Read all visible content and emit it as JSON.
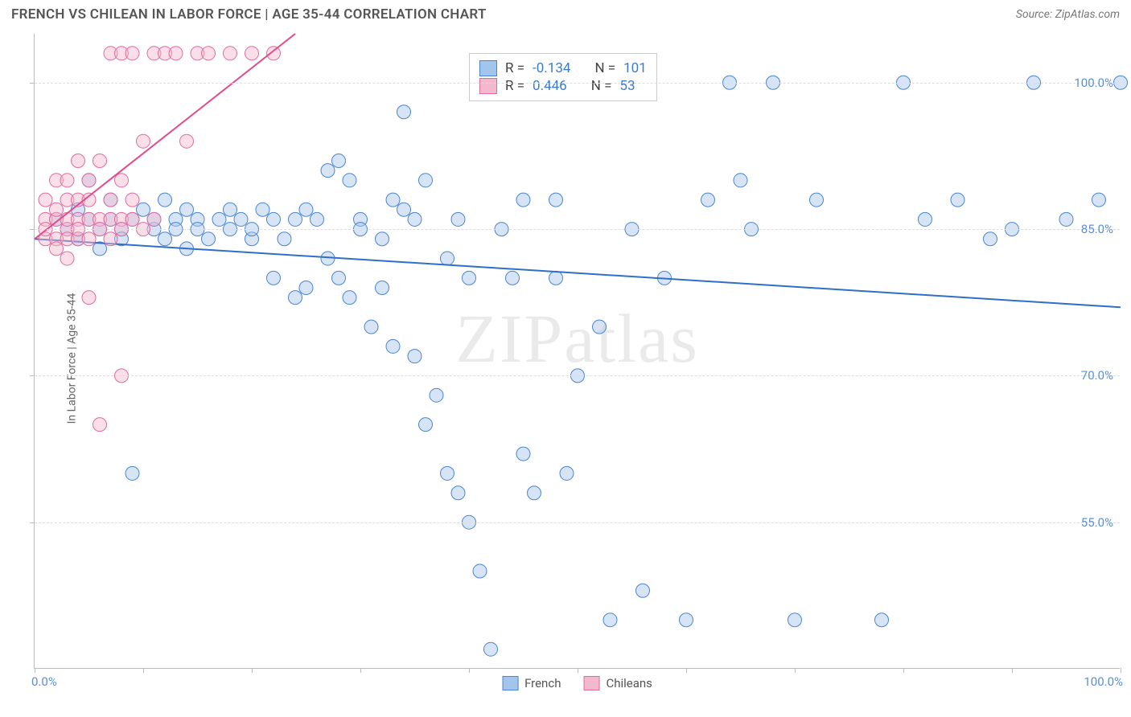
{
  "header": {
    "title": "FRENCH VS CHILEAN IN LABOR FORCE | AGE 35-44 CORRELATION CHART",
    "source": "Source: ZipAtlas.com"
  },
  "chart": {
    "type": "scatter",
    "y_axis_label": "In Labor Force | Age 35-44",
    "watermark": "ZIPatlas",
    "background_color": "#ffffff",
    "grid_color": "#dddddd",
    "axis_color": "#bbbbbb",
    "xlim": [
      0,
      100
    ],
    "ylim": [
      40,
      105
    ],
    "x_ticks": [
      0,
      10,
      20,
      30,
      40,
      50,
      60,
      70,
      80,
      90,
      100
    ],
    "x_tick_labels": {
      "0": "0.0%",
      "100": "100.0%"
    },
    "y_gridlines": [
      55,
      70,
      85,
      100
    ],
    "y_tick_labels": {
      "55": "55.0%",
      "70": "70.0%",
      "85": "85.0%",
      "100": "100.0%"
    },
    "marker_radius": 8.5,
    "marker_opacity": 0.45,
    "trend_line_width": 2,
    "series": [
      {
        "name": "French",
        "fill_color": "#a3c4ec",
        "stroke_color": "#4a86d0",
        "trend_color": "#2f6fc7",
        "R": "-0.134",
        "N": "101",
        "trend_line": {
          "x1": 0,
          "y1": 84,
          "x2": 100,
          "y2": 77
        },
        "points": [
          [
            2,
            86
          ],
          [
            3,
            85
          ],
          [
            4,
            87
          ],
          [
            4,
            84
          ],
          [
            5,
            86
          ],
          [
            5,
            90
          ],
          [
            6,
            85
          ],
          [
            6,
            83
          ],
          [
            7,
            86
          ],
          [
            7,
            88
          ],
          [
            8,
            85
          ],
          [
            8,
            84
          ],
          [
            9,
            86
          ],
          [
            9,
            60
          ],
          [
            10,
            87
          ],
          [
            11,
            85
          ],
          [
            11,
            86
          ],
          [
            12,
            84
          ],
          [
            12,
            88
          ],
          [
            13,
            86
          ],
          [
            13,
            85
          ],
          [
            14,
            87
          ],
          [
            14,
            83
          ],
          [
            15,
            86
          ],
          [
            15,
            85
          ],
          [
            16,
            84
          ],
          [
            17,
            86
          ],
          [
            18,
            85
          ],
          [
            18,
            87
          ],
          [
            19,
            86
          ],
          [
            20,
            84
          ],
          [
            20,
            85
          ],
          [
            21,
            87
          ],
          [
            22,
            86
          ],
          [
            22,
            80
          ],
          [
            23,
            84
          ],
          [
            24,
            86
          ],
          [
            24,
            78
          ],
          [
            25,
            87
          ],
          [
            25,
            79
          ],
          [
            26,
            86
          ],
          [
            27,
            91
          ],
          [
            27,
            82
          ],
          [
            28,
            92
          ],
          [
            28,
            80
          ],
          [
            29,
            90
          ],
          [
            29,
            78
          ],
          [
            30,
            86
          ],
          [
            30,
            85
          ],
          [
            31,
            75
          ],
          [
            32,
            84
          ],
          [
            32,
            79
          ],
          [
            33,
            88
          ],
          [
            33,
            73
          ],
          [
            34,
            97
          ],
          [
            34,
            87
          ],
          [
            35,
            86
          ],
          [
            35,
            72
          ],
          [
            36,
            90
          ],
          [
            36,
            65
          ],
          [
            37,
            68
          ],
          [
            38,
            82
          ],
          [
            38,
            60
          ],
          [
            39,
            86
          ],
          [
            39,
            58
          ],
          [
            40,
            80
          ],
          [
            40,
            55
          ],
          [
            41,
            50
          ],
          [
            42,
            42
          ],
          [
            43,
            85
          ],
          [
            44,
            80
          ],
          [
            45,
            88
          ],
          [
            45,
            62
          ],
          [
            46,
            58
          ],
          [
            48,
            80
          ],
          [
            48,
            88
          ],
          [
            49,
            60
          ],
          [
            50,
            70
          ],
          [
            52,
            75
          ],
          [
            53,
            45
          ],
          [
            55,
            85
          ],
          [
            56,
            48
          ],
          [
            58,
            80
          ],
          [
            60,
            45
          ],
          [
            62,
            88
          ],
          [
            64,
            100
          ],
          [
            66,
            85
          ],
          [
            68,
            100
          ],
          [
            70,
            45
          ],
          [
            72,
            88
          ],
          [
            78,
            45
          ],
          [
            80,
            100
          ],
          [
            82,
            86
          ],
          [
            85,
            88
          ],
          [
            88,
            84
          ],
          [
            90,
            85
          ],
          [
            92,
            100
          ],
          [
            95,
            86
          ],
          [
            98,
            88
          ],
          [
            100,
            100
          ],
          [
            65,
            90
          ]
        ]
      },
      {
        "name": "Chileans",
        "fill_color": "#f4b8cc",
        "stroke_color": "#e06ba0",
        "trend_color": "#e24b8a",
        "R": "0.446",
        "N": "53",
        "trend_line": {
          "x1": 0,
          "y1": 84,
          "x2": 24,
          "y2": 105
        },
        "points": [
          [
            1,
            84
          ],
          [
            1,
            86
          ],
          [
            1,
            85
          ],
          [
            1,
            88
          ],
          [
            2,
            84
          ],
          [
            2,
            86
          ],
          [
            2,
            90
          ],
          [
            2,
            83
          ],
          [
            2,
            87
          ],
          [
            3,
            85
          ],
          [
            3,
            84
          ],
          [
            3,
            88
          ],
          [
            3,
            86
          ],
          [
            3,
            90
          ],
          [
            3,
            82
          ],
          [
            4,
            86
          ],
          [
            4,
            84
          ],
          [
            4,
            88
          ],
          [
            4,
            92
          ],
          [
            4,
            85
          ],
          [
            5,
            86
          ],
          [
            5,
            84
          ],
          [
            5,
            90
          ],
          [
            5,
            78
          ],
          [
            5,
            88
          ],
          [
            6,
            86
          ],
          [
            6,
            85
          ],
          [
            6,
            92
          ],
          [
            6,
            65
          ],
          [
            7,
            86
          ],
          [
            7,
            88
          ],
          [
            7,
            103
          ],
          [
            7,
            84
          ],
          [
            8,
            86
          ],
          [
            8,
            85
          ],
          [
            8,
            103
          ],
          [
            8,
            90
          ],
          [
            9,
            86
          ],
          [
            9,
            103
          ],
          [
            9,
            88
          ],
          [
            10,
            94
          ],
          [
            10,
            85
          ],
          [
            11,
            103
          ],
          [
            11,
            86
          ],
          [
            12,
            103
          ],
          [
            13,
            103
          ],
          [
            14,
            94
          ],
          [
            15,
            103
          ],
          [
            16,
            103
          ],
          [
            18,
            103
          ],
          [
            20,
            103
          ],
          [
            22,
            103
          ],
          [
            8,
            70
          ]
        ]
      }
    ],
    "stats_box": {
      "r_label": "R =",
      "n_label": "N =",
      "left_pct": 40,
      "top_pct_y": 103
    },
    "bottom_legend": [
      {
        "label": "French",
        "fill": "#a3c4ec",
        "stroke": "#4a86d0"
      },
      {
        "label": "Chileans",
        "fill": "#f4b8cc",
        "stroke": "#e06ba0"
      }
    ]
  }
}
